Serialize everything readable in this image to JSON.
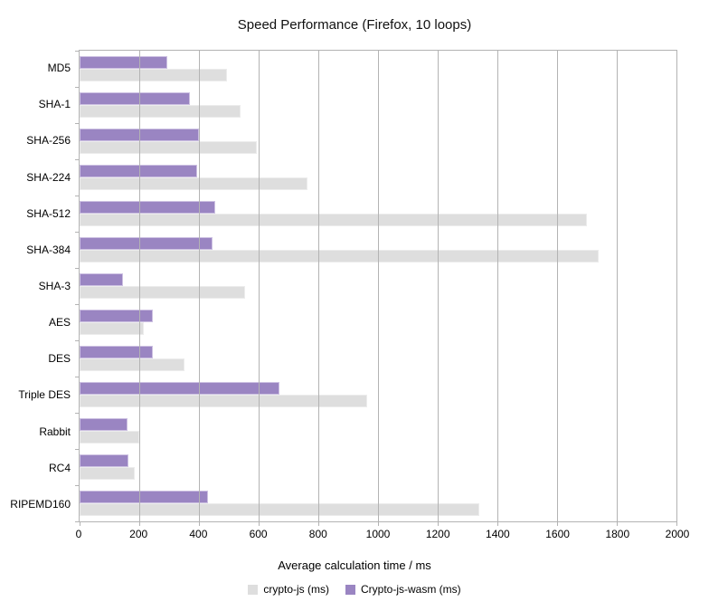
{
  "chart_data": {
    "type": "bar",
    "orientation": "horizontal",
    "title": "Speed Performance (Firefox, 10 loops)",
    "xlabel": "Average calculation time / ms",
    "ylabel": "",
    "xlim": [
      0,
      2000
    ],
    "x_ticks": [
      0,
      200,
      400,
      600,
      800,
      1000,
      1200,
      1400,
      1600,
      1800,
      2000
    ],
    "grid": true,
    "legend_position": "bottom",
    "categories": [
      "MD5",
      "SHA-1",
      "SHA-256",
      "SHA-224",
      "SHA-512",
      "SHA-384",
      "SHA-3",
      "AES",
      "DES",
      "Triple DES",
      "Rabbit",
      "RC4",
      "RIPEMD160"
    ],
    "series": [
      {
        "name": "crypto-js (ms)",
        "color": "#dedede",
        "values": [
          495,
          540,
          595,
          765,
          1700,
          1740,
          555,
          215,
          350,
          965,
          200,
          185,
          1340
        ]
      },
      {
        "name": "Crypto-js-wasm (ms)",
        "color": "#9a85c2",
        "values": [
          295,
          370,
          400,
          395,
          455,
          445,
          145,
          245,
          245,
          670,
          160,
          165,
          430
        ]
      }
    ],
    "colors": {
      "axis_and_grid": "#b3b3b3",
      "background": "#ffffff",
      "text": "#000000"
    }
  }
}
